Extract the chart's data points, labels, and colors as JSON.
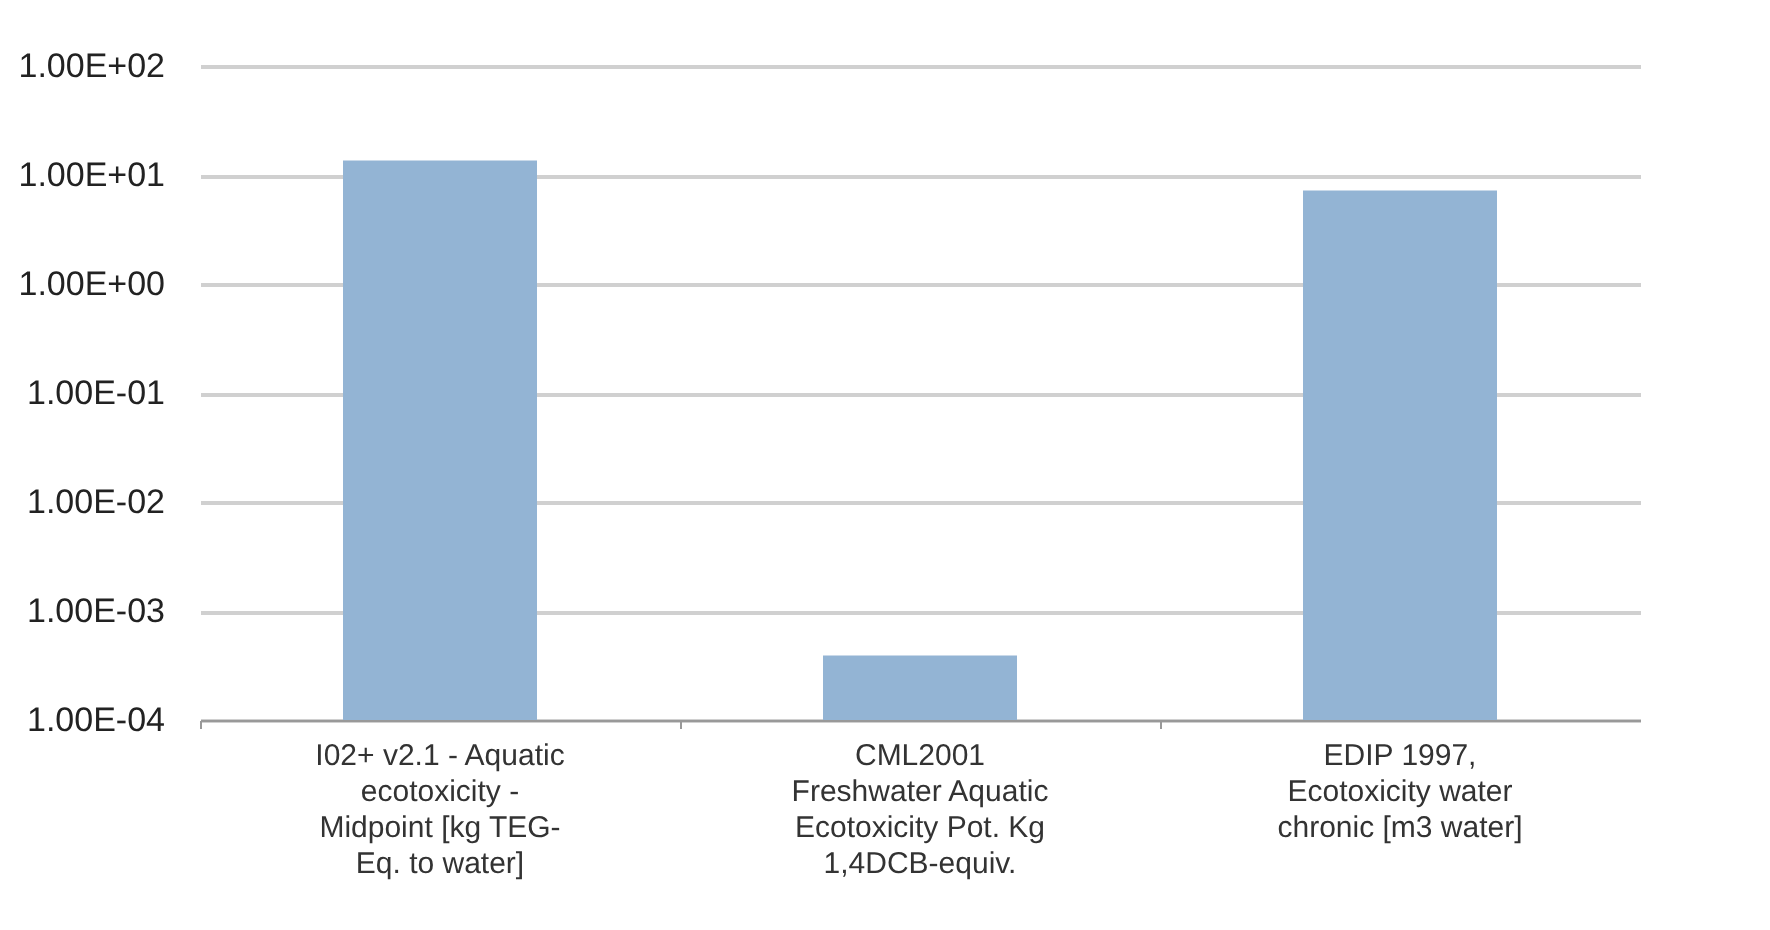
{
  "chart_data": {
    "type": "bar",
    "categories": [
      "I02+ v2.1 - Aquatic\necotoxicity -\nMidpoint [kg TEG-\nEq. to water]",
      "CML2001\nFreshwater Aquatic\nEcotoxicity Pot. Kg\n1,4DCB-equiv.",
      "EDIP 1997,\nEcotoxicity water\nchronic [m3 water]"
    ],
    "values": [
      13.6,
      0.00039,
      7.2
    ],
    "color": "#93b4d4",
    "log": true,
    "ylim": [
      0.0001,
      100
    ],
    "yticks": [
      {
        "value": 0.0001,
        "label": "1.00E-04"
      },
      {
        "value": 0.001,
        "label": "1.00E-03"
      },
      {
        "value": 0.01,
        "label": "1.00E-02"
      },
      {
        "value": 0.1,
        "label": "1.00E-01"
      },
      {
        "value": 1,
        "label": "1.00E+00"
      },
      {
        "value": 10,
        "label": "1.00E+01"
      },
      {
        "value": 100,
        "label": "1.00E+02"
      }
    ],
    "grid": "y"
  }
}
